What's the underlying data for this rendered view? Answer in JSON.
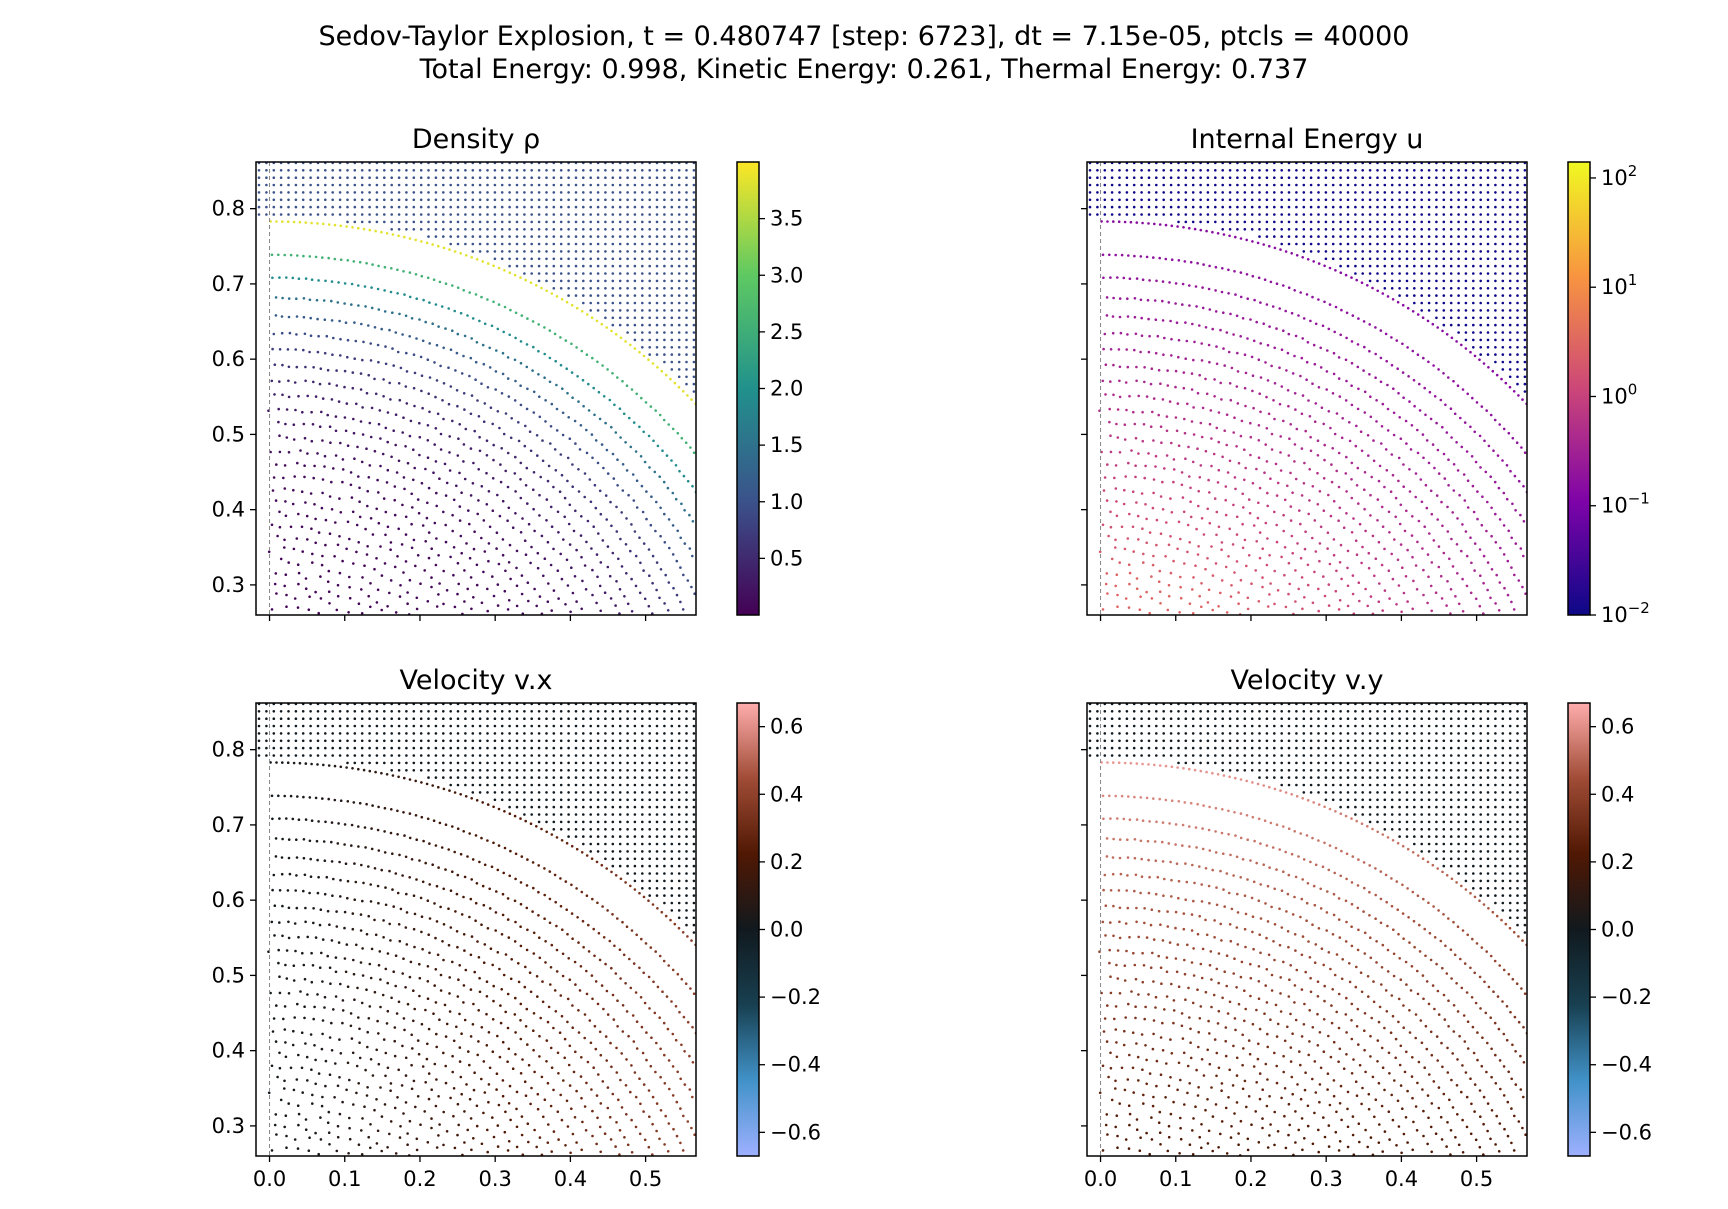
{
  "figure": {
    "suptitle_line1": "Sedov-Taylor Explosion, t = 0.480747 [step: 6723], dt = 7.15e-05, ptcls = 40000",
    "suptitle_line2": "Total Energy: 0.998, Kinetic Energy: 0.261, Thermal Energy: 0.737"
  },
  "chart_data": [
    {
      "type": "scatter",
      "title": "Density ρ",
      "colormap": "viridis",
      "color_scale": "linear",
      "clim": [
        0.0,
        4.0
      ],
      "colorbar_ticks": [
        "0.5",
        "1.0",
        "1.5",
        "2.0",
        "2.5",
        "3.0",
        "3.5"
      ],
      "colorbar_tick_values": [
        0.5,
        1.0,
        1.5,
        2.0,
        2.5,
        3.0,
        3.5
      ],
      "xlim": [
        -0.018,
        0.567
      ],
      "ylim": [
        0.26,
        0.862
      ],
      "xticks": [],
      "yticks": [
        "0.3",
        "0.4",
        "0.5",
        "0.6",
        "0.7",
        "0.8"
      ],
      "ytick_values": [
        0.3,
        0.4,
        0.5,
        0.6,
        0.7,
        0.8
      ],
      "shock_radius": 0.785,
      "field": "density",
      "field_values": {
        "ambient": 1.0,
        "peak_at_shock": 3.9,
        "center": 0.05
      },
      "marker_color": "#31688e"
    },
    {
      "type": "scatter",
      "title": "Internal Energy u",
      "colormap": "plasma",
      "color_scale": "log",
      "clim": [
        0.01,
        140
      ],
      "colorbar_ticks": [
        "10^-2",
        "10^-1",
        "10^0",
        "10^1",
        "10^2"
      ],
      "colorbar_tick_values": [
        0.01,
        0.1,
        1,
        10,
        100
      ],
      "xlim": [
        -0.018,
        0.567
      ],
      "ylim": [
        0.26,
        0.862
      ],
      "xticks": [],
      "yticks": [],
      "shock_radius": 0.785,
      "field": "internal_energy",
      "field_values": {
        "ambient": 0.01,
        "post_shock": 0.15,
        "center": 1.5
      },
      "marker_color": "#b83289"
    },
    {
      "type": "scatter",
      "title": "Velocity v.x",
      "colormap": "berlin",
      "color_scale": "linear",
      "clim": [
        -0.67,
        0.67
      ],
      "colorbar_ticks": [
        "0.6",
        "0.4",
        "0.2",
        "0.0",
        "−0.2",
        "−0.4",
        "−0.6"
      ],
      "colorbar_tick_values": [
        0.6,
        0.4,
        0.2,
        0.0,
        -0.2,
        -0.4,
        -0.6
      ],
      "xlim": [
        -0.018,
        0.567
      ],
      "ylim": [
        0.26,
        0.862
      ],
      "xticks": [
        "0.0",
        "0.1",
        "0.2",
        "0.3",
        "0.4",
        "0.5"
      ],
      "xtick_values": [
        0.0,
        0.1,
        0.2,
        0.3,
        0.4,
        0.5
      ],
      "yticks": [
        "0.3",
        "0.4",
        "0.5",
        "0.6",
        "0.7",
        "0.8"
      ],
      "ytick_values": [
        0.3,
        0.4,
        0.5,
        0.6,
        0.7,
        0.8
      ],
      "shock_radius": 0.785,
      "field": "velocity_x",
      "field_values": {
        "ambient": 0.0,
        "max": 0.35
      },
      "marker_color": "#6a2a18"
    },
    {
      "type": "scatter",
      "title": "Velocity v.y",
      "colormap": "berlin",
      "color_scale": "linear",
      "clim": [
        -0.67,
        0.67
      ],
      "colorbar_ticks": [
        "0.6",
        "0.4",
        "0.2",
        "0.0",
        "−0.2",
        "−0.4",
        "−0.6"
      ],
      "colorbar_tick_values": [
        0.6,
        0.4,
        0.2,
        0.0,
        -0.2,
        -0.4,
        -0.6
      ],
      "xlim": [
        -0.018,
        0.567
      ],
      "ylim": [
        0.26,
        0.862
      ],
      "xticks": [
        "0.0",
        "0.1",
        "0.2",
        "0.3",
        "0.4",
        "0.5"
      ],
      "xtick_values": [
        0.0,
        0.1,
        0.2,
        0.3,
        0.4,
        0.5
      ],
      "yticks": [],
      "shock_radius": 0.785,
      "field": "velocity_y",
      "field_values": {
        "ambient": 0.0,
        "max": 0.6
      },
      "marker_color": "#c4726a"
    }
  ]
}
